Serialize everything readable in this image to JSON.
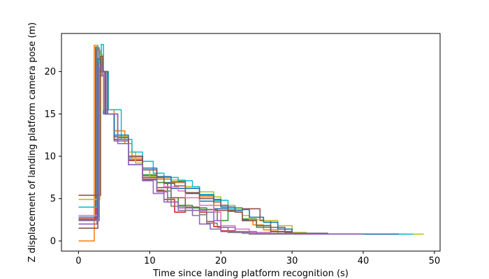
{
  "chart_data": {
    "type": "line",
    "xlabel": "Time since landing platform recognition (s)",
    "ylabel": "Z displacement of landing platform camera pose (m)",
    "xlim": [
      -2.4,
      50.8
    ],
    "ylim": [
      -1.2,
      24.5
    ],
    "xticks": [
      0,
      10,
      20,
      30,
      40,
      50
    ],
    "yticks": [
      0,
      5,
      10,
      15,
      20
    ],
    "grid": false,
    "legend": "none",
    "series": [
      {
        "color": "#1f77b4",
        "points": [
          [
            0,
            2.6
          ],
          [
            2.1,
            2.6
          ],
          [
            2.4,
            22.9
          ],
          [
            2.8,
            20
          ],
          [
            3.5,
            15
          ],
          [
            5,
            12.3
          ],
          [
            7,
            9.8
          ],
          [
            9,
            7.8
          ],
          [
            11,
            6.9
          ],
          [
            13,
            6.2
          ],
          [
            15,
            5.6
          ],
          [
            17,
            4.7
          ],
          [
            19,
            3.8
          ],
          [
            21,
            3.6
          ],
          [
            23,
            2.5
          ],
          [
            25,
            1.8
          ],
          [
            27,
            1.1
          ],
          [
            29,
            0.9
          ],
          [
            31,
            0.8
          ],
          [
            35,
            0.8
          ],
          [
            40,
            0.8
          ],
          [
            45,
            0.8
          ],
          [
            46,
            0.8
          ]
        ]
      },
      {
        "color": "#ff7f0e",
        "points": [
          [
            0,
            0
          ],
          [
            2.0,
            0
          ],
          [
            2.2,
            23.1
          ],
          [
            2.7,
            20.5
          ],
          [
            3.5,
            15.5
          ],
          [
            5,
            13
          ],
          [
            6.5,
            11.5
          ],
          [
            7.5,
            9.8
          ],
          [
            9,
            8.4
          ],
          [
            11,
            7.3
          ],
          [
            13,
            6.9
          ],
          [
            15,
            6.4
          ],
          [
            17,
            5.2
          ],
          [
            19,
            4.2
          ],
          [
            21,
            3.6
          ],
          [
            22,
            3.4
          ],
          [
            23,
            2.4
          ],
          [
            24.5,
            1.9
          ],
          [
            26,
            1.3
          ],
          [
            28,
            0.9
          ],
          [
            30,
            0.8
          ],
          [
            35,
            0.8
          ],
          [
            40,
            0.8
          ]
        ]
      },
      {
        "color": "#2ca02c",
        "points": [
          [
            0,
            2.6
          ],
          [
            2.2,
            2.6
          ],
          [
            2.6,
            22.5
          ],
          [
            3,
            20
          ],
          [
            3.7,
            15
          ],
          [
            5,
            12
          ],
          [
            7,
            9.5
          ],
          [
            9,
            7.8
          ],
          [
            11,
            6.9
          ],
          [
            12.5,
            5.1
          ],
          [
            14,
            4.2
          ],
          [
            16,
            3.9
          ],
          [
            18,
            3.7
          ],
          [
            19.5,
            2.4
          ],
          [
            21,
            3.8
          ],
          [
            22,
            3.9
          ],
          [
            23,
            2.6
          ],
          [
            25,
            1.6
          ],
          [
            27,
            1.1
          ],
          [
            29,
            0.8
          ],
          [
            35,
            0.8
          ],
          [
            40,
            0.8
          ]
        ]
      },
      {
        "color": "#d62728",
        "points": [
          [
            0,
            2.6
          ],
          [
            2.2,
            2.6
          ],
          [
            2.5,
            22.7
          ],
          [
            2.9,
            20
          ],
          [
            3.7,
            15
          ],
          [
            5,
            12
          ],
          [
            7,
            9.5
          ],
          [
            9,
            7.5
          ],
          [
            11,
            6
          ],
          [
            12,
            4.9
          ],
          [
            13.5,
            3.4
          ],
          [
            15,
            3.6
          ],
          [
            17,
            3.4
          ],
          [
            18,
            2.3
          ],
          [
            19,
            1.7
          ],
          [
            20,
            1.2
          ],
          [
            22,
            1.0
          ],
          [
            24,
            0.8
          ],
          [
            30,
            0.8
          ],
          [
            40,
            0.8
          ]
        ]
      },
      {
        "color": "#9467bd",
        "points": [
          [
            0,
            2.0
          ],
          [
            2.3,
            2.0
          ],
          [
            2.6,
            21.5
          ],
          [
            3,
            20
          ],
          [
            3.7,
            15
          ],
          [
            5,
            11.8
          ],
          [
            7,
            9
          ],
          [
            9,
            7.1
          ],
          [
            10.5,
            5.6
          ],
          [
            12,
            4.6
          ],
          [
            14,
            3.6
          ],
          [
            16,
            3.0
          ],
          [
            17,
            2.0
          ],
          [
            18.5,
            1.4
          ],
          [
            20,
            1.1
          ],
          [
            23,
            0.9
          ],
          [
            26,
            0.8
          ],
          [
            32,
            0.8
          ],
          [
            40,
            0.8
          ]
        ]
      },
      {
        "color": "#8c564b",
        "points": [
          [
            0,
            1.5
          ],
          [
            2.4,
            1.5
          ],
          [
            2.7,
            21
          ],
          [
            3.1,
            19.5
          ],
          [
            3.8,
            15
          ],
          [
            5,
            12
          ],
          [
            7,
            9
          ],
          [
            9,
            7.3
          ],
          [
            11,
            6.3
          ],
          [
            13,
            5.1
          ],
          [
            15,
            4.0
          ],
          [
            17,
            3.7
          ],
          [
            19,
            3.6
          ],
          [
            21,
            3.5
          ],
          [
            22,
            3.6
          ],
          [
            23,
            3.8
          ],
          [
            24,
            3.8
          ],
          [
            25.5,
            2.4
          ],
          [
            27,
            1.6
          ],
          [
            29,
            1.0
          ],
          [
            31,
            0.8
          ],
          [
            35,
            0.8
          ],
          [
            40,
            0.8
          ]
        ]
      },
      {
        "color": "#e377c2",
        "points": [
          [
            0,
            3.0
          ],
          [
            2.5,
            3.0
          ],
          [
            2.8,
            22.5
          ],
          [
            3.2,
            20
          ],
          [
            4,
            15
          ],
          [
            5.5,
            12
          ],
          [
            7,
            10
          ],
          [
            9,
            8.4
          ],
          [
            11,
            7.5
          ],
          [
            12,
            6.4
          ],
          [
            14,
            5.9
          ],
          [
            15,
            5.1
          ],
          [
            17,
            4.2
          ],
          [
            19,
            3.4
          ],
          [
            20,
            1.8
          ],
          [
            22,
            1.4
          ],
          [
            24,
            1.0
          ],
          [
            27,
            0.8
          ],
          [
            32,
            0.8
          ],
          [
            40,
            0.8
          ]
        ]
      },
      {
        "color": "#7f7f7f",
        "points": [
          [
            0,
            2.4
          ],
          [
            2.6,
            2.4
          ],
          [
            2.9,
            21.5
          ],
          [
            3.3,
            20
          ],
          [
            4,
            15
          ],
          [
            5.5,
            12
          ],
          [
            7,
            9.6
          ],
          [
            9,
            7.7
          ],
          [
            11,
            5.9
          ],
          [
            13,
            4.1
          ],
          [
            15,
            3.6
          ],
          [
            17,
            3.1
          ],
          [
            18,
            2.1
          ],
          [
            19.5,
            1.6
          ],
          [
            21,
            1.0
          ],
          [
            24,
            0.8
          ],
          [
            30,
            0.8
          ],
          [
            40,
            0.8
          ]
        ]
      },
      {
        "color": "#bcbd22",
        "points": [
          [
            0,
            4.9
          ],
          [
            2.7,
            4.9
          ],
          [
            3.0,
            22
          ],
          [
            3.4,
            20
          ],
          [
            4.1,
            15
          ],
          [
            5.5,
            12.3
          ],
          [
            7,
            10.5
          ],
          [
            8,
            9.2
          ],
          [
            9,
            8.4
          ],
          [
            10,
            7.6
          ],
          [
            12,
            7.5
          ],
          [
            13,
            7.2
          ],
          [
            15,
            6.4
          ],
          [
            17,
            5.8
          ],
          [
            19,
            5.2
          ],
          [
            20,
            4.2
          ],
          [
            22,
            3.7
          ],
          [
            23,
            3.0
          ],
          [
            24,
            2.5
          ],
          [
            26,
            2.4
          ],
          [
            28,
            1.8
          ],
          [
            30,
            1.0
          ],
          [
            32,
            0.8
          ],
          [
            40,
            0.8
          ],
          [
            46,
            0.8
          ],
          [
            48.5,
            0.8
          ]
        ]
      },
      {
        "color": "#17becf",
        "points": [
          [
            0,
            4.0
          ],
          [
            2.3,
            4.0
          ],
          [
            2.6,
            22.8
          ],
          [
            2.9,
            21
          ],
          [
            3.2,
            23.2
          ],
          [
            3.5,
            20
          ],
          [
            4.2,
            15.5
          ],
          [
            6,
            12
          ],
          [
            7.5,
            10.5
          ],
          [
            9,
            9.4
          ],
          [
            10.5,
            8
          ],
          [
            12,
            7.5
          ],
          [
            14,
            7.1
          ],
          [
            16,
            6.4
          ],
          [
            17,
            5.5
          ],
          [
            19,
            4.8
          ],
          [
            21,
            3.8
          ],
          [
            22,
            3.4
          ],
          [
            23,
            2.4
          ],
          [
            25,
            1.8
          ],
          [
            27,
            1.1
          ],
          [
            30,
            0.9
          ],
          [
            35,
            0.8
          ],
          [
            40,
            0.8
          ],
          [
            47,
            0.8
          ]
        ]
      },
      {
        "color": "#1f77b4",
        "points": [
          [
            0,
            2.8
          ],
          [
            2.4,
            2.8
          ],
          [
            2.7,
            21.5
          ],
          [
            3.1,
            20
          ],
          [
            3.8,
            15
          ],
          [
            5,
            12.5
          ],
          [
            7,
            10
          ],
          [
            9,
            8.6
          ],
          [
            11,
            7.6
          ],
          [
            13,
            7.0
          ],
          [
            15,
            6.2
          ],
          [
            17,
            5.4
          ],
          [
            19,
            4.9
          ],
          [
            20,
            4.0
          ],
          [
            22,
            3.6
          ],
          [
            23,
            3.7
          ],
          [
            24,
            2.8
          ],
          [
            26,
            2.2
          ],
          [
            28,
            1.4
          ],
          [
            30,
            0.9
          ],
          [
            35,
            0.8
          ],
          [
            40,
            0.8
          ],
          [
            45,
            0.8
          ]
        ]
      },
      {
        "color": "#8c564b",
        "points": [
          [
            0,
            5.4
          ],
          [
            2.9,
            5.4
          ],
          [
            3.1,
            21.8
          ],
          [
            3.4,
            20
          ],
          [
            4.1,
            15
          ],
          [
            5.5,
            12.2
          ],
          [
            7,
            10
          ],
          [
            9,
            8.4
          ],
          [
            11,
            7.5
          ],
          [
            12,
            6.8
          ],
          [
            13.5,
            6.5
          ],
          [
            15,
            5.7
          ],
          [
            17,
            5.0
          ],
          [
            19,
            4.6
          ],
          [
            20,
            4.2
          ],
          [
            21,
            3.6
          ],
          [
            22,
            3.4
          ],
          [
            23,
            2.4
          ],
          [
            25,
            1.8
          ],
          [
            27,
            1.1
          ],
          [
            30,
            0.9
          ],
          [
            35,
            0.8
          ],
          [
            40,
            0.8
          ]
        ]
      },
      {
        "color": "#9467bd",
        "points": [
          [
            0,
            2.5
          ],
          [
            2.6,
            2.5
          ],
          [
            2.9,
            20.5
          ],
          [
            3.3,
            19.5
          ],
          [
            4,
            15
          ],
          [
            5.5,
            11.5
          ],
          [
            7,
            9
          ],
          [
            9,
            7.2
          ],
          [
            11,
            5.8
          ],
          [
            12.5,
            4.6
          ],
          [
            14,
            3.9
          ],
          [
            16,
            3.6
          ],
          [
            18,
            3.4
          ],
          [
            19,
            2.4
          ],
          [
            20,
            1.6
          ],
          [
            22,
            1.1
          ],
          [
            25,
            0.9
          ],
          [
            30,
            0.8
          ],
          [
            40,
            0.8
          ]
        ]
      }
    ]
  }
}
